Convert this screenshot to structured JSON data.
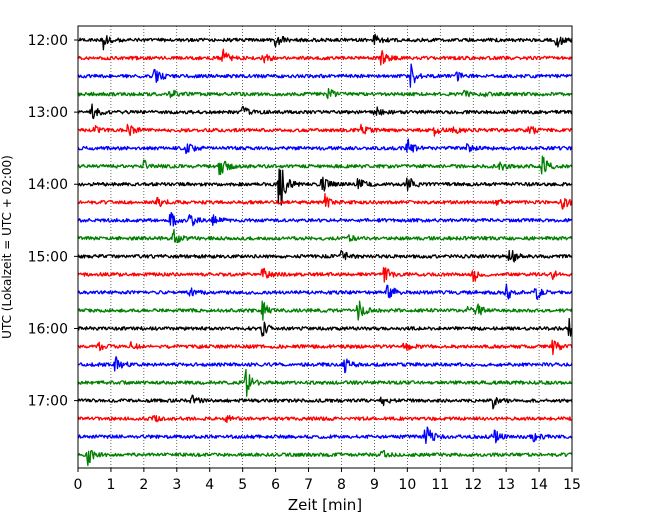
{
  "chart_data": {
    "type": "line",
    "title": "",
    "xlabel": "Zeit  [min]",
    "ylabel": "UTC (Lokalzeit = UTC + 02:00)",
    "xlim": [
      0,
      15
    ],
    "x_ticks": [
      0,
      1,
      2,
      3,
      4,
      5,
      6,
      7,
      8,
      9,
      10,
      11,
      12,
      13,
      14,
      15
    ],
    "x_tick_labels": [
      "0",
      "1",
      "2",
      "3",
      "4",
      "5",
      "6",
      "7",
      "8",
      "9",
      "10",
      "11",
      "12",
      "13",
      "14",
      "15"
    ],
    "y_tick_labels": [
      "12:00",
      "13:00",
      "14:00",
      "15:00",
      "16:00",
      "17:00"
    ],
    "y_tick_rows": [
      0,
      4,
      8,
      12,
      16,
      20
    ],
    "grid": "vertical dotted at each minute",
    "trace_colors": [
      "#000000",
      "#ff0000",
      "#0000ff",
      "#008000"
    ],
    "traces": [
      {
        "start": "12:00",
        "events": [
          [
            0.75,
            1.0
          ],
          [
            6.0,
            0.9
          ],
          [
            9.0,
            0.7
          ],
          [
            14.5,
            1.0
          ]
        ]
      },
      {
        "start": "12:15",
        "events": [
          [
            4.4,
            0.9
          ],
          [
            5.6,
            0.6
          ],
          [
            9.2,
            0.8
          ]
        ]
      },
      {
        "start": "12:30",
        "events": [
          [
            2.3,
            1.1
          ],
          [
            10.1,
            1.2
          ],
          [
            11.5,
            0.4
          ]
        ]
      },
      {
        "start": "12:45",
        "events": [
          [
            2.8,
            0.5
          ],
          [
            7.6,
            0.6
          ],
          [
            11.7,
            0.3
          ],
          [
            12.2,
            0.3
          ]
        ]
      },
      {
        "start": "13:00",
        "events": [
          [
            0.4,
            0.8
          ],
          [
            5.0,
            0.5
          ],
          [
            9.0,
            0.7
          ]
        ]
      },
      {
        "start": "13:15",
        "events": [
          [
            0.5,
            0.4
          ],
          [
            1.5,
            0.8
          ],
          [
            8.6,
            0.5
          ],
          [
            10.8,
            0.5
          ],
          [
            11.4,
            0.4
          ],
          [
            13.7,
            0.6
          ]
        ]
      },
      {
        "start": "13:30",
        "events": [
          [
            3.3,
            0.7
          ],
          [
            10.0,
            1.0
          ],
          [
            11.8,
            0.4
          ]
        ]
      },
      {
        "start": "13:45",
        "events": [
          [
            2.0,
            0.6
          ],
          [
            4.3,
            1.5
          ],
          [
            12.8,
            0.5
          ],
          [
            14.1,
            1.1
          ]
        ]
      },
      {
        "start": "14:00",
        "events": [
          [
            6.1,
            3.2
          ],
          [
            7.4,
            0.9
          ],
          [
            8.5,
            0.6
          ],
          [
            10.0,
            0.9
          ]
        ]
      },
      {
        "start": "14:15",
        "events": [
          [
            2.4,
            0.7
          ],
          [
            7.5,
            0.7
          ],
          [
            12.7,
            0.4
          ],
          [
            14.7,
            0.8
          ]
        ]
      },
      {
        "start": "14:30",
        "events": [
          [
            2.8,
            0.8
          ],
          [
            3.4,
            0.9
          ],
          [
            4.1,
            0.5
          ]
        ]
      },
      {
        "start": "14:45",
        "events": [
          [
            2.9,
            0.8
          ],
          [
            8.2,
            0.3
          ]
        ]
      },
      {
        "start": "15:00",
        "events": [
          [
            8.0,
            0.6
          ],
          [
            13.1,
            1.2
          ]
        ]
      },
      {
        "start": "15:15",
        "events": [
          [
            5.6,
            0.8
          ],
          [
            9.3,
            0.9
          ],
          [
            12.0,
            0.8
          ],
          [
            14.4,
            0.4
          ]
        ]
      },
      {
        "start": "15:30",
        "events": [
          [
            3.4,
            0.4
          ],
          [
            9.4,
            1.0
          ],
          [
            13.0,
            0.8
          ],
          [
            13.9,
            0.8
          ]
        ]
      },
      {
        "start": "15:45",
        "events": [
          [
            5.6,
            0.9
          ],
          [
            8.5,
            1.2
          ],
          [
            11.8,
            0.4
          ],
          [
            12.1,
            0.7
          ]
        ]
      },
      {
        "start": "16:00",
        "events": [
          [
            5.6,
            0.8
          ],
          [
            14.9,
            1.0
          ]
        ]
      },
      {
        "start": "16:15",
        "events": [
          [
            0.6,
            0.4
          ],
          [
            1.6,
            0.4
          ],
          [
            9.9,
            0.6
          ],
          [
            14.4,
            0.9
          ]
        ]
      },
      {
        "start": "16:30",
        "events": [
          [
            1.1,
            1.5
          ],
          [
            8.1,
            0.7
          ]
        ]
      },
      {
        "start": "16:45",
        "events": [
          [
            5.1,
            1.4
          ]
        ]
      },
      {
        "start": "17:00",
        "events": [
          [
            3.4,
            0.7
          ],
          [
            9.2,
            0.6
          ],
          [
            12.6,
            0.8
          ]
        ]
      },
      {
        "start": "17:15",
        "events": [
          [
            2.3,
            0.3
          ],
          [
            4.5,
            0.3
          ]
        ]
      },
      {
        "start": "17:30",
        "events": [
          [
            10.55,
            1.5
          ],
          [
            12.6,
            0.9
          ],
          [
            13.8,
            0.9
          ]
        ]
      },
      {
        "start": "17:45",
        "events": [
          [
            0.3,
            1.0
          ],
          [
            9.2,
            0.5
          ]
        ]
      }
    ]
  }
}
